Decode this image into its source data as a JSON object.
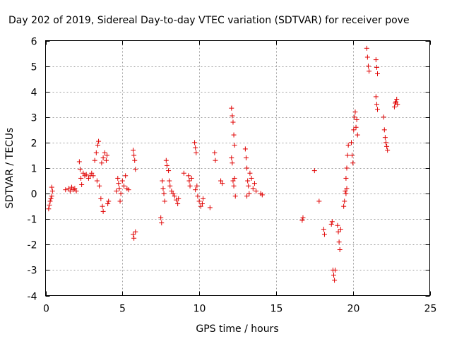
{
  "chart_data": {
    "type": "scatter",
    "title": "Day 202 of 2019, Sidereal Day-to-day VTEC variation (SDTVAR) for receiver pove",
    "xlabel": "GPS time / hours",
    "ylabel": "SDTVAR / TECUs",
    "xlim": [
      0,
      25
    ],
    "ylim": [
      -4,
      6
    ],
    "xticks": [
      0,
      5,
      10,
      15,
      20,
      25
    ],
    "yticks": [
      -4,
      -3,
      -2,
      -1,
      0,
      1,
      2,
      3,
      4,
      5,
      6
    ],
    "xtick_labels": [
      "0",
      "5",
      "10",
      "15",
      "20",
      "25"
    ],
    "ytick_labels": [
      "-4",
      "-3",
      "-2",
      "-1",
      "0",
      "1",
      "2",
      "3",
      "4",
      "5",
      "6"
    ],
    "grid": true,
    "marker": "plus",
    "color": "#e00000",
    "series": [
      {
        "name": "pove",
        "points": [
          [
            0.2,
            -0.6
          ],
          [
            0.25,
            -0.45
          ],
          [
            0.3,
            -0.3
          ],
          [
            0.35,
            -0.2
          ],
          [
            0.4,
            -0.1
          ],
          [
            0.45,
            0.1
          ],
          [
            0.4,
            0.25
          ],
          [
            1.3,
            0.15
          ],
          [
            1.5,
            0.2
          ],
          [
            1.6,
            0.1
          ],
          [
            1.7,
            0.25
          ],
          [
            1.8,
            0.15
          ],
          [
            1.9,
            0.2
          ],
          [
            2.0,
            0.1
          ],
          [
            2.2,
            1.25
          ],
          [
            2.25,
            0.95
          ],
          [
            2.3,
            0.6
          ],
          [
            2.35,
            0.35
          ],
          [
            2.45,
            0.8
          ],
          [
            2.55,
            0.7
          ],
          [
            2.65,
            0.75
          ],
          [
            2.8,
            0.6
          ],
          [
            2.9,
            0.7
          ],
          [
            3.0,
            0.8
          ],
          [
            3.1,
            0.7
          ],
          [
            3.2,
            1.3
          ],
          [
            3.3,
            1.6
          ],
          [
            3.4,
            1.9
          ],
          [
            3.45,
            2.05
          ],
          [
            3.35,
            0.5
          ],
          [
            3.5,
            0.3
          ],
          [
            3.6,
            -0.2
          ],
          [
            3.7,
            -0.5
          ],
          [
            3.75,
            -0.7
          ],
          [
            3.65,
            1.2
          ],
          [
            3.75,
            1.4
          ],
          [
            3.85,
            1.6
          ],
          [
            3.95,
            1.3
          ],
          [
            4.0,
            1.5
          ],
          [
            4.05,
            -0.4
          ],
          [
            4.1,
            -0.3
          ],
          [
            4.6,
            0.1
          ],
          [
            4.7,
            0.6
          ],
          [
            4.75,
            0.4
          ],
          [
            4.8,
            0.2
          ],
          [
            4.85,
            -0.3
          ],
          [
            4.9,
            0.0
          ],
          [
            5.0,
            0.5
          ],
          [
            5.1,
            0.3
          ],
          [
            5.2,
            0.7
          ],
          [
            5.3,
            0.2
          ],
          [
            5.4,
            0.15
          ],
          [
            5.7,
            1.7
          ],
          [
            5.75,
            1.5
          ],
          [
            5.8,
            1.3
          ],
          [
            5.85,
            0.95
          ],
          [
            5.7,
            -1.6
          ],
          [
            5.75,
            -1.75
          ],
          [
            5.85,
            -1.5
          ],
          [
            7.5,
            -0.95
          ],
          [
            7.55,
            -1.15
          ],
          [
            7.6,
            0.5
          ],
          [
            7.65,
            0.2
          ],
          [
            7.7,
            0.0
          ],
          [
            7.75,
            -0.3
          ],
          [
            7.85,
            1.3
          ],
          [
            7.9,
            1.1
          ],
          [
            8.0,
            0.9
          ],
          [
            8.05,
            0.5
          ],
          [
            8.1,
            0.3
          ],
          [
            8.2,
            0.1
          ],
          [
            8.3,
            0.0
          ],
          [
            8.4,
            -0.1
          ],
          [
            8.5,
            -0.25
          ],
          [
            8.6,
            -0.4
          ],
          [
            8.65,
            -0.2
          ],
          [
            9.0,
            0.8
          ],
          [
            9.3,
            0.7
          ],
          [
            9.35,
            0.5
          ],
          [
            9.4,
            0.3
          ],
          [
            9.5,
            0.6
          ],
          [
            9.7,
            2.0
          ],
          [
            9.75,
            1.8
          ],
          [
            9.8,
            1.6
          ],
          [
            9.85,
            0.3
          ],
          [
            9.75,
            0.15
          ],
          [
            9.9,
            -0.1
          ],
          [
            10.0,
            -0.3
          ],
          [
            10.1,
            -0.5
          ],
          [
            10.2,
            -0.4
          ],
          [
            10.25,
            -0.2
          ],
          [
            10.7,
            -0.55
          ],
          [
            11.0,
            1.6
          ],
          [
            11.05,
            1.3
          ],
          [
            11.4,
            0.5
          ],
          [
            11.5,
            0.4
          ],
          [
            12.1,
            3.35
          ],
          [
            12.15,
            3.05
          ],
          [
            12.2,
            2.8
          ],
          [
            12.25,
            2.3
          ],
          [
            12.3,
            1.9
          ],
          [
            12.1,
            1.4
          ],
          [
            12.15,
            1.2
          ],
          [
            12.2,
            0.5
          ],
          [
            12.25,
            0.3
          ],
          [
            12.3,
            0.6
          ],
          [
            12.35,
            -0.1
          ],
          [
            13.0,
            1.75
          ],
          [
            13.05,
            1.4
          ],
          [
            13.1,
            1.0
          ],
          [
            13.15,
            0.5
          ],
          [
            13.2,
            0.3
          ],
          [
            13.25,
            0.0
          ],
          [
            13.1,
            -0.1
          ],
          [
            13.3,
            0.8
          ],
          [
            13.4,
            0.6
          ],
          [
            13.5,
            0.2
          ],
          [
            13.6,
            0.4
          ],
          [
            13.7,
            0.1
          ],
          [
            14.0,
            0.0
          ],
          [
            14.1,
            -0.05
          ],
          [
            16.7,
            -1.05
          ],
          [
            16.75,
            -0.95
          ],
          [
            17.5,
            0.9
          ],
          [
            17.8,
            -0.3
          ],
          [
            18.1,
            -1.4
          ],
          [
            18.15,
            -1.6
          ],
          [
            18.6,
            -1.2
          ],
          [
            18.65,
            -1.1
          ],
          [
            18.7,
            -3.0
          ],
          [
            18.75,
            -3.2
          ],
          [
            18.8,
            -3.4
          ],
          [
            18.85,
            -3.0
          ],
          [
            19.0,
            -1.25
          ],
          [
            19.05,
            -1.5
          ],
          [
            19.1,
            -1.9
          ],
          [
            19.15,
            -2.2
          ],
          [
            19.2,
            -1.4
          ],
          [
            19.4,
            -0.5
          ],
          [
            19.45,
            -0.3
          ],
          [
            19.5,
            0.1
          ],
          [
            19.55,
            0.6
          ],
          [
            19.6,
            1.0
          ],
          [
            19.65,
            1.5
          ],
          [
            19.7,
            1.9
          ],
          [
            19.55,
            0.0
          ],
          [
            19.6,
            0.2
          ],
          [
            19.9,
            2.0
          ],
          [
            19.95,
            1.5
          ],
          [
            20.0,
            1.2
          ],
          [
            20.05,
            2.5
          ],
          [
            20.1,
            3.0
          ],
          [
            20.15,
            3.2
          ],
          [
            20.2,
            2.6
          ],
          [
            20.25,
            2.9
          ],
          [
            20.3,
            2.3
          ],
          [
            20.9,
            5.7
          ],
          [
            20.95,
            5.35
          ],
          [
            21.0,
            5.0
          ],
          [
            21.05,
            4.8
          ],
          [
            21.5,
            5.25
          ],
          [
            21.55,
            4.95
          ],
          [
            21.6,
            4.7
          ],
          [
            21.5,
            3.8
          ],
          [
            21.55,
            3.5
          ],
          [
            21.6,
            3.3
          ],
          [
            22.0,
            3.0
          ],
          [
            22.05,
            2.5
          ],
          [
            22.1,
            2.2
          ],
          [
            22.15,
            2.0
          ],
          [
            22.2,
            1.85
          ],
          [
            22.25,
            1.7
          ],
          [
            22.7,
            3.4
          ],
          [
            22.75,
            3.55
          ],
          [
            22.8,
            3.6
          ],
          [
            22.85,
            3.7
          ],
          [
            22.9,
            3.5
          ]
        ]
      }
    ]
  }
}
